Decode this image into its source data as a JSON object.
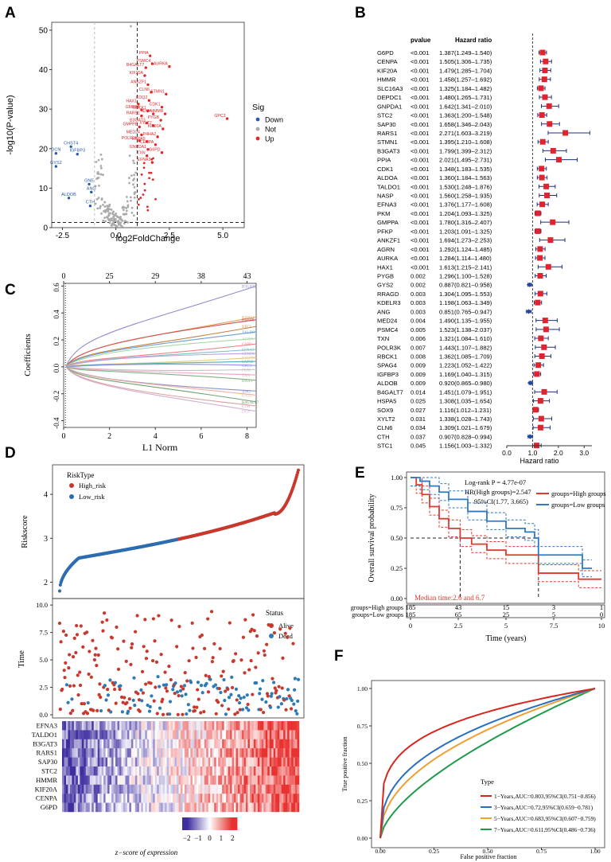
{
  "panels": {
    "A": "A",
    "B": "B",
    "C": "C",
    "D": "D",
    "E": "E",
    "F": "F"
  },
  "chart_data": [
    {
      "id": "A",
      "type": "scatter",
      "title": "",
      "xlabel": "log2FoldChange",
      "ylabel": "-log10(P-value)",
      "xlim": [
        -3,
        6
      ],
      "ylim": [
        0,
        52
      ],
      "xticks": [
        "-2.5",
        "0.0",
        "2.5",
        "5.0"
      ],
      "yticks": [
        "0",
        "10",
        "20",
        "30",
        "40",
        "50"
      ],
      "legend": {
        "title": "Sig",
        "items": [
          "Down",
          "Not",
          "Up"
        ]
      },
      "colors": {
        "Down": "#2a5aa8",
        "Not": "#aaaaaa",
        "Up": "#e0262a"
      },
      "down": [
        {
          "label": "CHST4",
          "x": -2.1,
          "y": 20.5
        },
        {
          "label": "DCN",
          "x": -2.8,
          "y": 18.8
        },
        {
          "label": "IGFBP3",
          "x": -1.8,
          "y": 18.6
        },
        {
          "label": "GYS2",
          "x": -2.8,
          "y": 15.5
        },
        {
          "label": "GNE",
          "x": -1.25,
          "y": 11.0
        },
        {
          "label": "ANG",
          "x": -1.15,
          "y": 9.0
        },
        {
          "label": "ALDOB",
          "x": -2.2,
          "y": 7.5
        },
        {
          "label": "CTH",
          "x": -1.2,
          "y": 5.5
        }
      ],
      "up": [
        {
          "label": "PPIA",
          "x": 1.6,
          "y": 43.5
        },
        {
          "label": "PSMC4",
          "x": 1.7,
          "y": 41.5
        },
        {
          "label": "B4GALT7",
          "x": 1.4,
          "y": 40.5
        },
        {
          "label": "AURKA",
          "x": 2.5,
          "y": 40.8
        },
        {
          "label": "KIF20A",
          "x": 1.35,
          "y": 38.5
        },
        {
          "label": "ANKZF1",
          "x": 1.5,
          "y": 36.2
        },
        {
          "label": "CLN6",
          "x": 1.65,
          "y": 34.3
        },
        {
          "label": "STMN1",
          "x": 2.35,
          "y": 33.8
        },
        {
          "label": "COQ2",
          "x": 1.55,
          "y": 32.2
        },
        {
          "label": "HAX1",
          "x": 1.05,
          "y": 31.3
        },
        {
          "label": "CDK1",
          "x": 2.15,
          "y": 30.5
        },
        {
          "label": "GMPPA",
          "x": 1.2,
          "y": 29.8
        },
        {
          "label": "RBCK1",
          "x": 1.5,
          "y": 29.6
        },
        {
          "label": "IDUA",
          "x": 1.75,
          "y": 28.8
        },
        {
          "label": "HMMR",
          "x": 2.3,
          "y": 28.8
        },
        {
          "label": "RARS1",
          "x": 1.2,
          "y": 28.3
        },
        {
          "label": "PYGB",
          "x": 2.1,
          "y": 27.2
        },
        {
          "label": "B3GAT3",
          "x": 1.45,
          "y": 26.5
        },
        {
          "label": "GPC3",
          "x": 5.2,
          "y": 27.6
        },
        {
          "label": "GMPPB",
          "x": 1.1,
          "y": 25.5
        },
        {
          "label": "XYLT2",
          "x": 1.75,
          "y": 25.8
        },
        {
          "label": "KIF20A",
          "x": 2.2,
          "y": 25.0
        },
        {
          "label": "MED24",
          "x": 1.2,
          "y": 23.5
        },
        {
          "label": "P4HA2",
          "x": 1.95,
          "y": 23.0
        },
        {
          "label": "POLR3K",
          "x": 1.1,
          "y": 22.0
        },
        {
          "label": "HSPA5",
          "x": 1.45,
          "y": 21.8
        },
        {
          "label": "CENPA",
          "x": 1.85,
          "y": 21.0
        },
        {
          "label": "GNPDA1",
          "x": 1.5,
          "y": 19.8
        },
        {
          "label": "TXN",
          "x": 1.45,
          "y": 18.2
        },
        {
          "label": "G6PD",
          "x": 2.15,
          "y": 19.0
        },
        {
          "label": "EFNA3",
          "x": 1.7,
          "y": 16.5
        }
      ],
      "outlier_not": {
        "x": 0.7,
        "y": 51
      },
      "vlines": [
        -1,
        1
      ],
      "hline": 1.3
    },
    {
      "id": "B",
      "type": "forest",
      "col_pvalue": "pvalue",
      "col_hr": "Hazard ratio",
      "xlabel": "Hazard ratio",
      "xlim": [
        0,
        3.3
      ],
      "xticks": [
        "0.0",
        "1.0",
        "2.0",
        "3.0"
      ],
      "ref_line": 1.0,
      "rows": [
        {
          "gene": "G6PD",
          "p": "<0.001",
          "text": "1.387(1.249–1.540)",
          "hr": 1.387,
          "lo": 1.249,
          "hi": 1.54
        },
        {
          "gene": "CENPA",
          "p": "<0.001",
          "text": "1.505(1.306–1.735)",
          "hr": 1.505,
          "lo": 1.306,
          "hi": 1.735
        },
        {
          "gene": "KIF20A",
          "p": "<0.001",
          "text": "1.479(1.285–1.704)",
          "hr": 1.479,
          "lo": 1.285,
          "hi": 1.704
        },
        {
          "gene": "HMMR",
          "p": "<0.001",
          "text": "1.458(1.257–1.692)",
          "hr": 1.458,
          "lo": 1.257,
          "hi": 1.692
        },
        {
          "gene": "SLC16A3",
          "p": "<0.001",
          "text": "1.325(1.184–1.482)",
          "hr": 1.325,
          "lo": 1.184,
          "hi": 1.482
        },
        {
          "gene": "DEPDC1",
          "p": "<0.001",
          "text": "1.480(1.265–1.731)",
          "hr": 1.48,
          "lo": 1.265,
          "hi": 1.731
        },
        {
          "gene": "GNPDA1",
          "p": "<0.001",
          "text": "1.642(1.341–2.010)",
          "hr": 1.642,
          "lo": 1.341,
          "hi": 2.01
        },
        {
          "gene": "STC2",
          "p": "<0.001",
          "text": "1.363(1.200–1.548)",
          "hr": 1.363,
          "lo": 1.2,
          "hi": 1.548
        },
        {
          "gene": "SAP30",
          "p": "<0.001",
          "text": "1.658(1.346–2.043)",
          "hr": 1.658,
          "lo": 1.346,
          "hi": 2.043
        },
        {
          "gene": "RARS1",
          "p": "<0.001",
          "text": "2.271(1.603–3.219)",
          "hr": 2.271,
          "lo": 1.603,
          "hi": 3.219
        },
        {
          "gene": "STMN1",
          "p": "<0.001",
          "text": "1.395(1.210–1.608)",
          "hr": 1.395,
          "lo": 1.21,
          "hi": 1.608
        },
        {
          "gene": "B3GAT3",
          "p": "<0.001",
          "text": "1.799(1.399–2.312)",
          "hr": 1.799,
          "lo": 1.399,
          "hi": 2.312
        },
        {
          "gene": "PPIA",
          "p": "<0.001",
          "text": "2.021(1.495–2.731)",
          "hr": 2.021,
          "lo": 1.495,
          "hi": 2.731
        },
        {
          "gene": "CDK1",
          "p": "<0.001",
          "text": "1.348(1.183–1.535)",
          "hr": 1.348,
          "lo": 1.183,
          "hi": 1.535
        },
        {
          "gene": "ALDOA",
          "p": "<0.001",
          "text": "1.360(1.184–1.563)",
          "hr": 1.36,
          "lo": 1.184,
          "hi": 1.563
        },
        {
          "gene": "TALDO1",
          "p": "<0.001",
          "text": "1.530(1.248–1.876)",
          "hr": 1.53,
          "lo": 1.248,
          "hi": 1.876
        },
        {
          "gene": "NASP",
          "p": "<0.001",
          "text": "1.560(1.258–1.935)",
          "hr": 1.56,
          "lo": 1.258,
          "hi": 1.935
        },
        {
          "gene": "EFNA3",
          "p": "<0.001",
          "text": "1.376(1.177–1.608)",
          "hr": 1.376,
          "lo": 1.177,
          "hi": 1.608
        },
        {
          "gene": "PKM",
          "p": "<0.001",
          "text": "1.204(1.093–1.325)",
          "hr": 1.204,
          "lo": 1.093,
          "hi": 1.325
        },
        {
          "gene": "GMPPA",
          "p": "<0.001",
          "text": "1.780(1.316–2.407)",
          "hr": 1.78,
          "lo": 1.316,
          "hi": 2.407
        },
        {
          "gene": "PFKP",
          "p": "<0.001",
          "text": "1.203(1.091–1.325)",
          "hr": 1.203,
          "lo": 1.091,
          "hi": 1.325
        },
        {
          "gene": "ANKZF1",
          "p": "<0.001",
          "text": "1.694(1.273–2.253)",
          "hr": 1.694,
          "lo": 1.273,
          "hi": 2.253
        },
        {
          "gene": "AGRN",
          "p": "<0.001",
          "text": "1.292(1.124–1.485)",
          "hr": 1.292,
          "lo": 1.124,
          "hi": 1.485
        },
        {
          "gene": "AURKA",
          "p": "<0.001",
          "text": "1.284(1.114–1.480)",
          "hr": 1.284,
          "lo": 1.114,
          "hi": 1.48
        },
        {
          "gene": "HAX1",
          "p": "<0.001",
          "text": "1.613(1.215–2.141)",
          "hr": 1.613,
          "lo": 1.215,
          "hi": 2.141
        },
        {
          "gene": "PYGB",
          "p": "0.002",
          "text": "1.296(1.100–1.528)",
          "hr": 1.296,
          "lo": 1.1,
          "hi": 1.528
        },
        {
          "gene": "GYS2",
          "p": "0.002",
          "text": "0.887(0.821–0.958)",
          "hr": 0.887,
          "lo": 0.821,
          "hi": 0.958
        },
        {
          "gene": "RRAGD",
          "p": "0.003",
          "text": "1.304(1.095–1.553)",
          "hr": 1.304,
          "lo": 1.095,
          "hi": 1.553
        },
        {
          "gene": "KDELR3",
          "p": "0.003",
          "text": "1.198(1.063–1.349)",
          "hr": 1.198,
          "lo": 1.063,
          "hi": 1.349
        },
        {
          "gene": "ANG",
          "p": "0.003",
          "text": "0.851(0.765–0.947)",
          "hr": 0.851,
          "lo": 0.765,
          "hi": 0.947
        },
        {
          "gene": "MED24",
          "p": "0.004",
          "text": "1.490(1.135–1.955)",
          "hr": 1.49,
          "lo": 1.135,
          "hi": 1.955
        },
        {
          "gene": "PSMC4",
          "p": "0.005",
          "text": "1.523(1.138–2.037)",
          "hr": 1.523,
          "lo": 1.138,
          "hi": 2.037
        },
        {
          "gene": "TXN",
          "p": "0.006",
          "text": "1.321(1.084–1.610)",
          "hr": 1.321,
          "lo": 1.084,
          "hi": 1.61
        },
        {
          "gene": "POLR3K",
          "p": "0.007",
          "text": "1.443(1.107–1.882)",
          "hr": 1.443,
          "lo": 1.107,
          "hi": 1.882
        },
        {
          "gene": "RBCK1",
          "p": "0.008",
          "text": "1.362(1.085–1.709)",
          "hr": 1.362,
          "lo": 1.085,
          "hi": 1.709
        },
        {
          "gene": "SPAG4",
          "p": "0.009",
          "text": "1.223(1.052–1.422)",
          "hr": 1.223,
          "lo": 1.052,
          "hi": 1.422
        },
        {
          "gene": "IGFBP3",
          "p": "0.009",
          "text": "1.169(1.040–1.315)",
          "hr": 1.169,
          "lo": 1.04,
          "hi": 1.315
        },
        {
          "gene": "ALDOB",
          "p": "0.009",
          "text": "0.920(0.865–0.980)",
          "hr": 0.92,
          "lo": 0.865,
          "hi": 0.98
        },
        {
          "gene": "B4GALT7",
          "p": "0.014",
          "text": "1.451(1.079–1.951)",
          "hr": 1.451,
          "lo": 1.079,
          "hi": 1.951
        },
        {
          "gene": "HSPA5",
          "p": "0.025",
          "text": "1.308(1.035–1.654)",
          "hr": 1.308,
          "lo": 1.035,
          "hi": 1.654
        },
        {
          "gene": "SOX9",
          "p": "0.027",
          "text": "1.116(1.012–1.231)",
          "hr": 1.116,
          "lo": 1.012,
          "hi": 1.231
        },
        {
          "gene": "XYLT2",
          "p": "0.031",
          "text": "1.338(1.028–1.743)",
          "hr": 1.338,
          "lo": 1.028,
          "hi": 1.743
        },
        {
          "gene": "CLN6",
          "p": "0.034",
          "text": "1.309(1.021–1.679)",
          "hr": 1.309,
          "lo": 1.021,
          "hi": 1.679
        },
        {
          "gene": "CTH",
          "p": "0.037",
          "text": "0.907(0.828–0.994)",
          "hr": 0.907,
          "lo": 0.828,
          "hi": 0.994
        },
        {
          "gene": "STC1",
          "p": "0.045",
          "text": "1.156(1.003–1.332)",
          "hr": 1.156,
          "lo": 1.003,
          "hi": 1.332
        }
      ]
    },
    {
      "id": "C",
      "type": "line",
      "xlabel": "L1 Norm",
      "ylabel": "Coefficients",
      "xlim": [
        0,
        8.4
      ],
      "ylim": [
        -0.45,
        0.62
      ],
      "xticks": [
        "0",
        "2",
        "4",
        "6",
        "8"
      ],
      "yticks": [
        "-0.4",
        "-0.2",
        "0.0",
        "0.2",
        "0.4",
        "0.6"
      ],
      "top_axis_ticks": [
        "0",
        "25",
        "29",
        "38",
        "43"
      ],
      "top_axis_positions": [
        0,
        2,
        4,
        6,
        8
      ],
      "series": [
        {
          "name": "B3GAT1",
          "end": 0.6,
          "color": "#8f8ccc"
        },
        {
          "name": "RARS1",
          "end": 0.37,
          "color": "#e0a060"
        },
        {
          "name": "HMMR",
          "end": 0.35,
          "color": "#d25050"
        },
        {
          "name": "STC2",
          "end": 0.3,
          "color": "#c08040"
        },
        {
          "name": "TALDO1",
          "end": 0.26,
          "color": "#6aa0d8"
        },
        {
          "name": "AGRN",
          "end": 0.21,
          "color": "#a8d8a8"
        },
        {
          "name": "G6PD",
          "end": 0.17,
          "color": "#f08080"
        },
        {
          "name": "EFNA3",
          "end": 0.13,
          "color": "#80c0c0"
        },
        {
          "name": "CENPA",
          "end": 0.1,
          "color": "#c0a0e0"
        },
        {
          "name": "KIF20A",
          "end": 0.07,
          "color": "#e8c880"
        },
        {
          "name": "SAP30",
          "end": 0.04,
          "color": "#50b0b0"
        },
        {
          "name": "GPC3",
          "end": 0.01,
          "color": "#9090f0"
        },
        {
          "name": "PKM",
          "end": -0.02,
          "color": "#c0c0c0"
        },
        {
          "name": "TXN",
          "end": -0.06,
          "color": "#f0a0c0"
        },
        {
          "name": "HAX1",
          "end": -0.1,
          "color": "#80b080"
        },
        {
          "name": "ANG",
          "end": -0.18,
          "color": "#9090d0"
        },
        {
          "name": "GYS2",
          "end": -0.21,
          "color": "#f0b0a0"
        },
        {
          "name": "B4GALT7",
          "end": -0.26,
          "color": "#70a070"
        },
        {
          "name": "CTH",
          "end": -0.29,
          "color": "#e0a0a0"
        },
        {
          "name": "DCN",
          "end": -0.33,
          "color": "#d0b0d0"
        }
      ]
    },
    {
      "id": "D",
      "type": "risk",
      "risk_legend_title": "RiskType",
      "risk_legend": [
        "High_risk",
        "Low_risk"
      ],
      "risk_colors": [
        "#c8382c",
        "#2c6cb0"
      ],
      "risk_ylabel": "Riskscore",
      "risk_yticks": [
        "2",
        "3",
        "4"
      ],
      "risk_ylim": [
        1.7,
        4.6
      ],
      "status_legend_title": "Status",
      "status_legend": [
        "Alive",
        "Dead"
      ],
      "status_ylabel": "Time",
      "status_yticks": [
        "0.0",
        "2.5",
        "5.0",
        "7.5",
        "10.0"
      ],
      "status_ylim": [
        0,
        10.3
      ],
      "heatmap_genes": [
        "EFNA3",
        "TALDO1",
        "B3GAT3",
        "RARS1",
        "SAP30",
        "STC2",
        "HMMR",
        "KIF20A",
        "CENPA",
        "G6PD"
      ],
      "colorbar_label": "z−score of expression",
      "colorbar_ticks": [
        "−2",
        "−1",
        "0",
        "1",
        "2"
      ],
      "n_samples": 370
    },
    {
      "id": "E",
      "type": "line",
      "subtype": "kaplan-meier",
      "xlabel": "Time (years)",
      "ylabel": "Overall survival probability",
      "xticks": [
        "0",
        "2.5",
        "5",
        "7.5",
        "10"
      ],
      "yticks": [
        "0.00",
        "0.25",
        "0.50",
        "0.75",
        "1.00"
      ],
      "xlim": [
        0,
        10
      ],
      "ylim": [
        0,
        1
      ],
      "annot_logrank": "Log-rank P = 4.77e-07",
      "annot_hr": "HR(High groups)=2.547",
      "annot_ci": "95%CI(1.77, 3.665)",
      "median_text": "Median time:2.6 and 6.7",
      "legend": [
        "groups=High groups",
        "groups=Low groups"
      ],
      "colors": [
        "#e0392e",
        "#2f78c4"
      ],
      "risk_table": {
        "rows": [
          "groups=High groups",
          "groups=Low groups"
        ],
        "values": [
          [
            "185",
            "43",
            "15",
            "3",
            "1"
          ],
          [
            "185",
            "65",
            "25",
            "5",
            "0"
          ]
        ]
      },
      "series": [
        {
          "name": "High groups",
          "x": [
            0,
            0.3,
            0.6,
            1.0,
            1.5,
            2.0,
            2.6,
            3.2,
            4.0,
            5.0,
            6.0,
            6.7,
            7.5,
            8.8,
            10
          ],
          "y": [
            1.0,
            0.94,
            0.86,
            0.76,
            0.66,
            0.58,
            0.5,
            0.45,
            0.4,
            0.36,
            0.36,
            0.21,
            0.21,
            0.16,
            0.16
          ]
        },
        {
          "name": "Low groups",
          "x": [
            0,
            0.5,
            1.0,
            1.5,
            2.0,
            3.0,
            4.0,
            5.0,
            6.0,
            6.5,
            6.7,
            7.5,
            9.0,
            9.5
          ],
          "y": [
            1.0,
            0.97,
            0.93,
            0.88,
            0.82,
            0.72,
            0.64,
            0.58,
            0.55,
            0.5,
            0.36,
            0.36,
            0.25,
            0.25
          ]
        }
      ]
    },
    {
      "id": "F",
      "type": "line",
      "subtype": "roc",
      "xlabel": "False positive fraction",
      "ylabel": "True positive fraction",
      "xticks": [
        "0.00",
        "0.25",
        "0.50",
        "0.75",
        "1.00"
      ],
      "yticks": [
        "0.00",
        "0.25",
        "0.50",
        "0.75",
        "1.00"
      ],
      "legend_title": "Type",
      "series": [
        {
          "name": "1−Years,AUC=0.803,95%CI(0.751−0.856)",
          "auc": 0.803,
          "color": "#d7261e"
        },
        {
          "name": "3−Years,AUC=0.72,95%CI(0.659−0.781)",
          "auc": 0.72,
          "color": "#2a6fbf"
        },
        {
          "name": "5−Years,AUC=0.683,95%CI(0.607−0.759)",
          "auc": 0.683,
          "color": "#f0a030"
        },
        {
          "name": "7−Years,AUC=0.611,95%CI(0.486−0.736)",
          "auc": 0.611,
          "color": "#1e9a4a"
        }
      ]
    }
  ]
}
